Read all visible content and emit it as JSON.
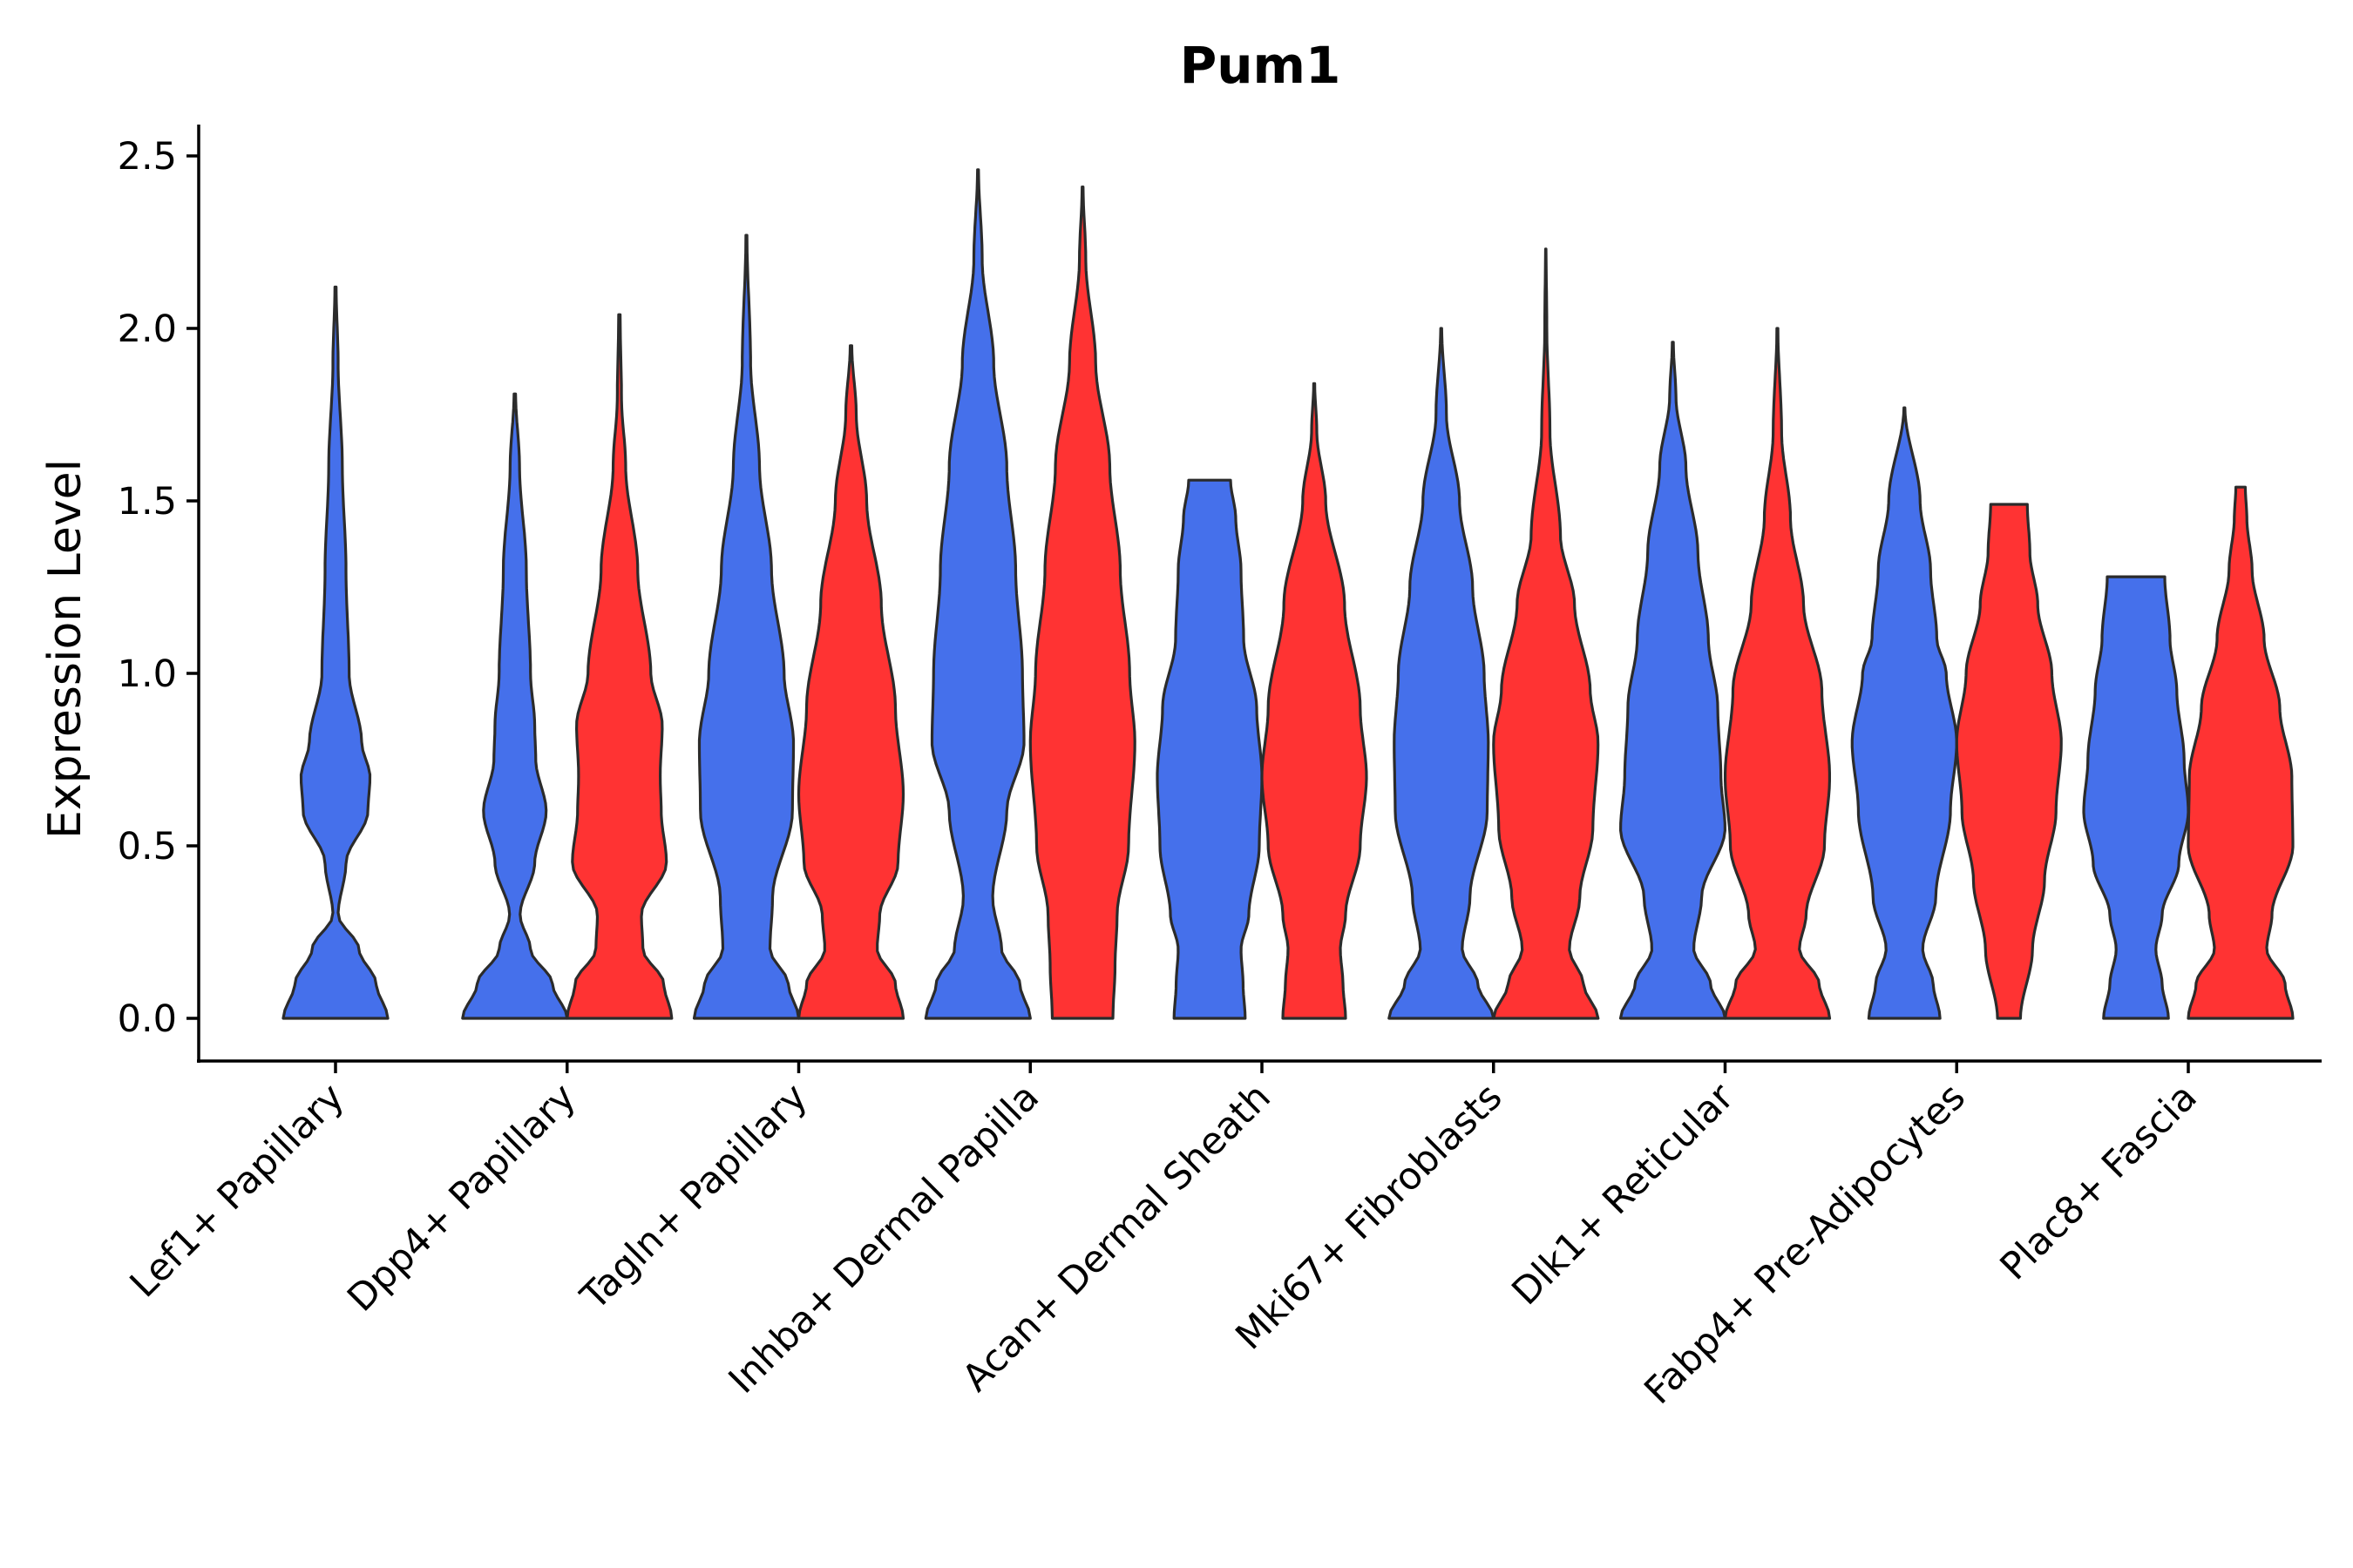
{
  "chart_data": {
    "type": "violin",
    "title": "Pum1",
    "xlabel": "",
    "ylabel": "Expression Level",
    "ylim": [
      -0.12,
      2.6
    ],
    "yticks": [
      "0.0",
      "0.5",
      "1.0",
      "1.5",
      "2.0",
      "2.5"
    ],
    "ytick_values": [
      0,
      0.5,
      1.0,
      1.5,
      2.0,
      2.5
    ],
    "colors": {
      "group1": "#4570EB",
      "group2": "#FF3333"
    },
    "categories": [
      "Lef1+ Papillary",
      "Dpp4+ Papillary",
      "Tagln+ Papillary",
      "Inhba+ Dermal Papilla",
      "Acan+ Dermal Sheath",
      "Mki67+ Fibroblasts",
      "Dlk1+ Reticular",
      "Fabp4+ Pre-Adipocytes",
      "Plac8+ Fascia"
    ],
    "violins": [
      {
        "category": 0,
        "offset": 0,
        "color": "#4570EB",
        "max": 2.12,
        "profile": [
          [
            0,
            1.0
          ],
          [
            0.1,
            0.78
          ],
          [
            0.2,
            0.45
          ],
          [
            0.3,
            0.05
          ],
          [
            0.45,
            0.2
          ],
          [
            0.6,
            0.62
          ],
          [
            0.7,
            0.66
          ],
          [
            0.8,
            0.5
          ],
          [
            1.0,
            0.26
          ],
          [
            1.3,
            0.2
          ],
          [
            1.6,
            0.13
          ],
          [
            1.9,
            0.05
          ],
          [
            2.12,
            0.012
          ]
        ]
      },
      {
        "category": 1,
        "offset": -1,
        "color": "#4570EB",
        "max": 1.81,
        "profile": [
          [
            0,
            1.0
          ],
          [
            0.1,
            0.72
          ],
          [
            0.2,
            0.3
          ],
          [
            0.3,
            0.1
          ],
          [
            0.45,
            0.38
          ],
          [
            0.6,
            0.6
          ],
          [
            0.75,
            0.4
          ],
          [
            0.85,
            0.38
          ],
          [
            1.0,
            0.3
          ],
          [
            1.3,
            0.22
          ],
          [
            1.6,
            0.09
          ],
          [
            1.81,
            0.015
          ]
        ]
      },
      {
        "category": 1,
        "offset": 1,
        "color": "#FF3333",
        "max": 2.04,
        "profile": [
          [
            0,
            1.0
          ],
          [
            0.1,
            0.85
          ],
          [
            0.2,
            0.45
          ],
          [
            0.3,
            0.42
          ],
          [
            0.45,
            0.9
          ],
          [
            0.6,
            0.8
          ],
          [
            0.7,
            0.78
          ],
          [
            0.85,
            0.82
          ],
          [
            1.0,
            0.6
          ],
          [
            1.3,
            0.35
          ],
          [
            1.6,
            0.12
          ],
          [
            1.8,
            0.04
          ],
          [
            2.04,
            0.015
          ]
        ]
      },
      {
        "category": 2,
        "offset": -1,
        "color": "#4570EB",
        "max": 2.27,
        "profile": [
          [
            0,
            1.0
          ],
          [
            0.1,
            0.8
          ],
          [
            0.2,
            0.45
          ],
          [
            0.35,
            0.5
          ],
          [
            0.6,
            0.88
          ],
          [
            0.8,
            0.9
          ],
          [
            1.0,
            0.72
          ],
          [
            1.3,
            0.48
          ],
          [
            1.6,
            0.25
          ],
          [
            1.9,
            0.08
          ],
          [
            2.27,
            0.01
          ]
        ]
      },
      {
        "category": 2,
        "offset": 1,
        "color": "#FF3333",
        "max": 1.95,
        "profile": [
          [
            0,
            1.0
          ],
          [
            0.1,
            0.85
          ],
          [
            0.2,
            0.5
          ],
          [
            0.3,
            0.55
          ],
          [
            0.45,
            0.9
          ],
          [
            0.65,
            1.0
          ],
          [
            0.9,
            0.85
          ],
          [
            1.2,
            0.58
          ],
          [
            1.5,
            0.3
          ],
          [
            1.75,
            0.1
          ],
          [
            1.95,
            0.015
          ]
        ]
      },
      {
        "category": 3,
        "offset": -1,
        "color": "#4570EB",
        "max": 2.46,
        "profile": [
          [
            0,
            1.0
          ],
          [
            0.1,
            0.8
          ],
          [
            0.2,
            0.45
          ],
          [
            0.35,
            0.28
          ],
          [
            0.6,
            0.55
          ],
          [
            0.8,
            0.88
          ],
          [
            1.0,
            0.85
          ],
          [
            1.3,
            0.72
          ],
          [
            1.6,
            0.55
          ],
          [
            1.9,
            0.3
          ],
          [
            2.2,
            0.08
          ],
          [
            2.46,
            0.01
          ]
        ]
      },
      {
        "category": 3,
        "offset": 1,
        "color": "#FF3333",
        "max": 2.41,
        "profile": [
          [
            0,
            0.58
          ],
          [
            0.15,
            0.62
          ],
          [
            0.3,
            0.66
          ],
          [
            0.5,
            0.88
          ],
          [
            0.8,
            1.0
          ],
          [
            1.0,
            0.9
          ],
          [
            1.3,
            0.72
          ],
          [
            1.6,
            0.52
          ],
          [
            1.9,
            0.25
          ],
          [
            2.2,
            0.06
          ],
          [
            2.41,
            0.01
          ]
        ]
      },
      {
        "category": 4,
        "offset": -1,
        "color": "#4570EB",
        "max": 1.56,
        "profile": [
          [
            0,
            0.68
          ],
          [
            0.1,
            0.64
          ],
          [
            0.2,
            0.6
          ],
          [
            0.3,
            0.75
          ],
          [
            0.5,
            0.95
          ],
          [
            0.7,
            1.0
          ],
          [
            0.9,
            0.9
          ],
          [
            1.1,
            0.65
          ],
          [
            1.3,
            0.6
          ],
          [
            1.45,
            0.5
          ],
          [
            1.56,
            0.4
          ]
        ]
      },
      {
        "category": 4,
        "offset": 1,
        "color": "#FF3333",
        "max": 1.84,
        "profile": [
          [
            0,
            0.6
          ],
          [
            0.1,
            0.55
          ],
          [
            0.2,
            0.5
          ],
          [
            0.3,
            0.6
          ],
          [
            0.5,
            0.88
          ],
          [
            0.7,
            1.0
          ],
          [
            0.9,
            0.88
          ],
          [
            1.2,
            0.58
          ],
          [
            1.5,
            0.22
          ],
          [
            1.7,
            0.05
          ],
          [
            1.84,
            0.01
          ]
        ]
      },
      {
        "category": 5,
        "offset": -1,
        "color": "#4570EB",
        "max": 2.0,
        "profile": [
          [
            0,
            1.0
          ],
          [
            0.1,
            0.7
          ],
          [
            0.2,
            0.4
          ],
          [
            0.35,
            0.55
          ],
          [
            0.6,
            0.88
          ],
          [
            0.8,
            0.9
          ],
          [
            1.0,
            0.82
          ],
          [
            1.25,
            0.6
          ],
          [
            1.5,
            0.35
          ],
          [
            1.75,
            0.1
          ],
          [
            2.0,
            0.01
          ]
        ]
      },
      {
        "category": 5,
        "offset": 1,
        "color": "#FF3333",
        "max": 2.23,
        "profile": [
          [
            0,
            1.0
          ],
          [
            0.1,
            0.72
          ],
          [
            0.2,
            0.45
          ],
          [
            0.35,
            0.65
          ],
          [
            0.55,
            0.9
          ],
          [
            0.8,
            1.0
          ],
          [
            0.95,
            0.85
          ],
          [
            1.2,
            0.55
          ],
          [
            1.4,
            0.28
          ],
          [
            1.7,
            0.08
          ],
          [
            2.0,
            0.02
          ],
          [
            2.23,
            0.005
          ]
        ]
      },
      {
        "category": 6,
        "offset": -1,
        "color": "#4570EB",
        "max": 1.96,
        "profile": [
          [
            0,
            1.0
          ],
          [
            0.1,
            0.72
          ],
          [
            0.2,
            0.4
          ],
          [
            0.35,
            0.55
          ],
          [
            0.55,
            1.0
          ],
          [
            0.7,
            0.92
          ],
          [
            0.9,
            0.86
          ],
          [
            1.1,
            0.68
          ],
          [
            1.35,
            0.48
          ],
          [
            1.6,
            0.25
          ],
          [
            1.8,
            0.06
          ],
          [
            1.96,
            0.01
          ]
        ]
      },
      {
        "category": 6,
        "offset": 1,
        "color": "#FF3333",
        "max": 2.0,
        "profile": [
          [
            0,
            1.0
          ],
          [
            0.1,
            0.8
          ],
          [
            0.2,
            0.42
          ],
          [
            0.3,
            0.55
          ],
          [
            0.5,
            0.9
          ],
          [
            0.7,
            1.0
          ],
          [
            0.95,
            0.85
          ],
          [
            1.2,
            0.5
          ],
          [
            1.45,
            0.25
          ],
          [
            1.7,
            0.08
          ],
          [
            2.0,
            0.01
          ]
        ]
      },
      {
        "category": 7,
        "offset": -1,
        "color": "#4570EB",
        "max": 1.77,
        "profile": [
          [
            0,
            0.68
          ],
          [
            0.1,
            0.55
          ],
          [
            0.2,
            0.35
          ],
          [
            0.35,
            0.6
          ],
          [
            0.6,
            0.88
          ],
          [
            0.8,
            1.0
          ],
          [
            1.0,
            0.8
          ],
          [
            1.1,
            0.62
          ],
          [
            1.3,
            0.5
          ],
          [
            1.5,
            0.3
          ],
          [
            1.77,
            0.01
          ]
        ]
      },
      {
        "category": 7,
        "offset": 1,
        "color": "#FF3333",
        "max": 1.49,
        "profile": [
          [
            0,
            0.22
          ],
          [
            0.2,
            0.45
          ],
          [
            0.4,
            0.68
          ],
          [
            0.6,
            0.9
          ],
          [
            0.8,
            1.0
          ],
          [
            1.0,
            0.82
          ],
          [
            1.2,
            0.55
          ],
          [
            1.35,
            0.4
          ],
          [
            1.49,
            0.35
          ]
        ]
      },
      {
        "category": 8,
        "offset": -1,
        "color": "#4570EB",
        "max": 1.28,
        "profile": [
          [
            0,
            0.62
          ],
          [
            0.1,
            0.5
          ],
          [
            0.2,
            0.38
          ],
          [
            0.3,
            0.5
          ],
          [
            0.45,
            0.82
          ],
          [
            0.6,
            1.0
          ],
          [
            0.75,
            0.92
          ],
          [
            0.95,
            0.78
          ],
          [
            1.1,
            0.65
          ],
          [
            1.28,
            0.55
          ]
        ]
      },
      {
        "category": 8,
        "offset": 1,
        "color": "#FF3333",
        "max": 1.54,
        "profile": [
          [
            0,
            1.0
          ],
          [
            0.1,
            0.85
          ],
          [
            0.2,
            0.5
          ],
          [
            0.3,
            0.6
          ],
          [
            0.5,
            1.0
          ],
          [
            0.7,
            0.98
          ],
          [
            0.9,
            0.75
          ],
          [
            1.1,
            0.45
          ],
          [
            1.3,
            0.22
          ],
          [
            1.45,
            0.12
          ],
          [
            1.54,
            0.09
          ]
        ]
      }
    ]
  }
}
